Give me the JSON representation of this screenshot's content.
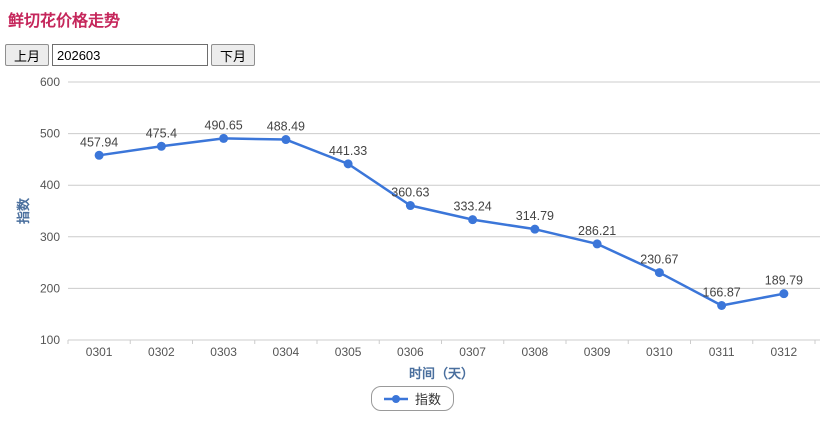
{
  "page_title": "鲜切花价格走势",
  "controls": {
    "prev_button": "上月",
    "month_value": "202603",
    "next_button": "下月"
  },
  "chart_data": {
    "type": "line",
    "categories": [
      "0301",
      "0302",
      "0303",
      "0304",
      "0305",
      "0306",
      "0307",
      "0308",
      "0309",
      "0310",
      "0311",
      "0312"
    ],
    "series": [
      {
        "name": "指数",
        "values": [
          457.94,
          475.4,
          490.65,
          488.49,
          441.33,
          360.63,
          333.24,
          314.79,
          286.21,
          230.67,
          166.87,
          189.79
        ]
      }
    ],
    "xlabel": "时间（天）",
    "ylabel": "指数",
    "ylim": [
      100,
      600
    ],
    "ytick_step": 100,
    "grid": true,
    "legend_position": "bottom",
    "line_color": "#3b76d9",
    "point_color": "#3b76d9",
    "grid_color": "#cccccc",
    "tick_color": "#555555",
    "label_color": "#444444",
    "axis_title_color": "#4a6f9e"
  }
}
